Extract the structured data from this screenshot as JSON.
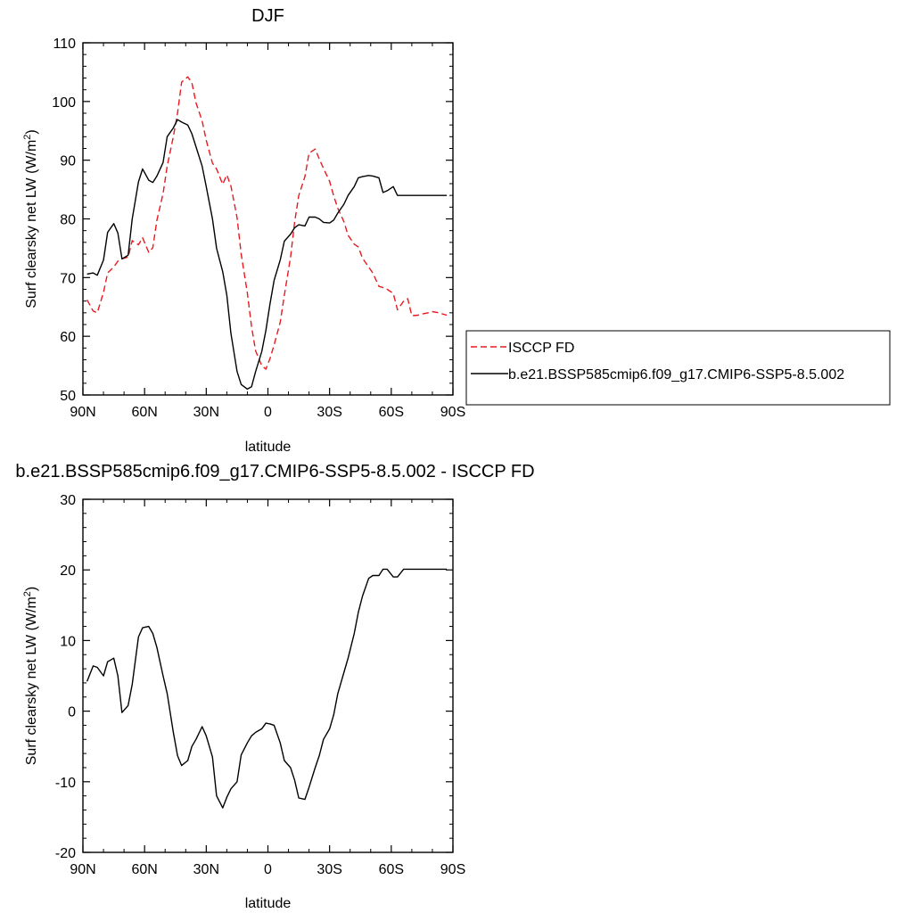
{
  "colors": {
    "model": "#000000",
    "obs": "#e8191f",
    "axes": "#000000"
  },
  "legend": {
    "placement": "right",
    "items": [
      {
        "label": "ISCCP FD",
        "color": "#e8191f",
        "dash": true
      },
      {
        "label": "b.e21.BSSP585cmip6.f09_g17.CMIP6-SSP5-8.5.002",
        "color": "#000000",
        "dash": false
      }
    ]
  },
  "chart_data": [
    {
      "type": "line",
      "title": "DJF",
      "xlabel": "latitude",
      "ylabel": "Surf clearsky net LW (W/m",
      "ylabel_sup": "2",
      "ylabel_end": ")",
      "xlim": [
        90,
        -90
      ],
      "ylim": [
        50,
        110
      ],
      "xticks": [
        90,
        60,
        30,
        0,
        -30,
        -60,
        -90
      ],
      "xtick_labels": [
        "90N",
        "60N",
        "30N",
        "0",
        "30S",
        "60S",
        "90S"
      ],
      "yticks": [
        50,
        60,
        70,
        80,
        90,
        100,
        110
      ],
      "ytick_labels": [
        "50",
        "60",
        "70",
        "80",
        "90",
        "100",
        "110"
      ],
      "series": [
        {
          "name": "ISCCP FD",
          "color": "#e8191f",
          "dash": true,
          "x": [
            88,
            85,
            83,
            80,
            78,
            75,
            73,
            71,
            68,
            66,
            63,
            61,
            58,
            56,
            54,
            51,
            49,
            46,
            44,
            42,
            39,
            37,
            35,
            32,
            30,
            27,
            25,
            22,
            20,
            18,
            15,
            13,
            10,
            8,
            6,
            3,
            1,
            -1,
            -3,
            -6,
            -8,
            -11,
            -13,
            -15,
            -18,
            -20,
            -23,
            -25,
            -27,
            -30,
            -32,
            -34,
            -37,
            -39,
            -42,
            -44,
            -46,
            -49,
            -51,
            -54,
            -56,
            -58,
            -61,
            -63,
            -66,
            -68,
            -70,
            -73,
            -75,
            -78,
            -80,
            -83,
            -85,
            -87
          ],
          "y": [
            66.2,
            64.3,
            64.0,
            67.5,
            70.8,
            71.8,
            72.8,
            73.2,
            73.5,
            76.3,
            75.6,
            76.8,
            74.3,
            75.1,
            79.8,
            84.3,
            89.0,
            94.0,
            98.0,
            103.3,
            104.2,
            103.2,
            99.8,
            96.7,
            93.4,
            89.5,
            88.5,
            85.9,
            87.5,
            85.6,
            80.2,
            74.0,
            67.4,
            61.7,
            57.5,
            55.0,
            54.4,
            56.2,
            58.5,
            62.4,
            67.0,
            73.5,
            79.5,
            84.0,
            87.2,
            91.2,
            91.9,
            90.2,
            88.6,
            86.4,
            83.9,
            81.8,
            79.5,
            77.2,
            75.7,
            75.2,
            73.3,
            71.8,
            70.8,
            68.5,
            68.3,
            68.0,
            67.3,
            64.5,
            66.0,
            66.4,
            63.5,
            63.6,
            63.8,
            64.0,
            64.2,
            64.0,
            63.8,
            63.6
          ]
        },
        {
          "name": "b.e21.BSSP585cmip6.f09_g17.CMIP6-SSP5-8.5.002",
          "color": "#000000",
          "dash": false,
          "x": [
            88,
            85,
            83,
            80,
            78,
            75,
            73,
            71,
            68,
            66,
            63,
            61,
            58,
            56,
            54,
            51,
            49,
            46,
            44,
            42,
            39,
            37,
            35,
            32,
            30,
            27,
            25,
            22,
            20,
            18,
            15,
            13,
            10,
            8,
            6,
            3,
            1,
            -1,
            -3,
            -6,
            -8,
            -11,
            -13,
            -15,
            -18,
            -20,
            -23,
            -25,
            -27,
            -30,
            -32,
            -34,
            -37,
            -39,
            -42,
            -44,
            -46,
            -49,
            -51,
            -54,
            -56,
            -58,
            -61,
            -63,
            -66,
            -68,
            -70,
            -73,
            -75,
            -78,
            -80,
            -83,
            -85,
            -87
          ],
          "y": [
            70.6,
            70.8,
            70.4,
            73.0,
            77.7,
            79.2,
            77.6,
            73.2,
            73.8,
            80.0,
            86.3,
            88.5,
            86.6,
            86.2,
            87.3,
            89.6,
            94.0,
            95.5,
            96.9,
            96.5,
            96.0,
            94.5,
            92.3,
            89.0,
            85.5,
            80.0,
            75.0,
            71.0,
            67.0,
            60.5,
            54.0,
            51.8,
            51.0,
            51.4,
            54.0,
            57.4,
            61.0,
            65.5,
            69.5,
            73.0,
            76.2,
            77.4,
            78.5,
            79.0,
            78.8,
            80.3,
            80.3,
            80.0,
            79.4,
            79.3,
            79.8,
            81.0,
            82.5,
            84.0,
            85.5,
            87.0,
            87.2,
            87.4,
            87.3,
            87.0,
            84.5,
            84.8,
            85.5,
            84.0,
            84.0,
            84.0,
            84.0,
            84.0,
            84.0,
            84.0,
            84.0,
            84.0,
            84.0,
            84.0
          ]
        }
      ]
    },
    {
      "type": "line",
      "title": "b.e21.BSSP585cmip6.f09_g17.CMIP6-SSP5-8.5.002 - ISCCP FD",
      "xlabel": "latitude",
      "ylabel": "Surf clearsky net LW (W/m",
      "ylabel_sup": "2",
      "ylabel_end": ")",
      "xlim": [
        90,
        -90
      ],
      "ylim": [
        -20,
        30
      ],
      "xticks": [
        90,
        60,
        30,
        0,
        -30,
        -60,
        -90
      ],
      "xtick_labels": [
        "90N",
        "60N",
        "30N",
        "0",
        "30S",
        "60S",
        "90S"
      ],
      "yticks": [
        -20,
        -10,
        0,
        10,
        20,
        30
      ],
      "ytick_labels": [
        "-20",
        "-10",
        "0",
        "10",
        "20",
        "30"
      ],
      "series": [
        {
          "color": "#000000",
          "dash": false,
          "x": [
            88,
            85,
            83,
            80,
            78,
            75,
            73,
            71,
            68,
            66,
            63,
            61,
            58,
            56,
            54,
            51,
            49,
            46,
            44,
            42,
            39,
            37,
            35,
            32,
            30,
            27,
            25,
            22,
            20,
            18,
            15,
            13,
            10,
            8,
            6,
            3,
            1,
            -1,
            -3,
            -6,
            -8,
            -11,
            -13,
            -15,
            -18,
            -20,
            -23,
            -25,
            -27,
            -30,
            -32,
            -34,
            -37,
            -39,
            -42,
            -44,
            -46,
            -49,
            -51,
            -54,
            -56,
            -58,
            -61,
            -63,
            -66,
            -68,
            -70,
            -73,
            -75,
            -78,
            -80,
            -83,
            -85,
            -87
          ],
          "y": [
            4.2,
            6.4,
            6.2,
            5.0,
            7.0,
            7.5,
            5.0,
            -0.2,
            0.8,
            3.8,
            10.5,
            11.8,
            12.0,
            11.0,
            9.0,
            5.0,
            2.5,
            -3.0,
            -6.3,
            -7.7,
            -7.0,
            -5.0,
            -4.0,
            -2.2,
            -3.5,
            -6.5,
            -12.0,
            -13.7,
            -12.2,
            -11.0,
            -10.0,
            -6.2,
            -4.5,
            -3.5,
            -3.0,
            -2.5,
            -1.7,
            -1.8,
            -2.0,
            -4.5,
            -7.0,
            -8.0,
            -9.8,
            -12.3,
            -12.5,
            -10.8,
            -8.0,
            -6.3,
            -4.0,
            -2.5,
            -0.5,
            2.5,
            5.5,
            7.5,
            11.0,
            14.0,
            16.3,
            18.8,
            19.2,
            19.2,
            20.1,
            20.1,
            19.0,
            19.0,
            20.1,
            20.1,
            20.1,
            20.1,
            20.1,
            20.1,
            20.1,
            20.1,
            20.1,
            20.1
          ]
        }
      ]
    }
  ]
}
